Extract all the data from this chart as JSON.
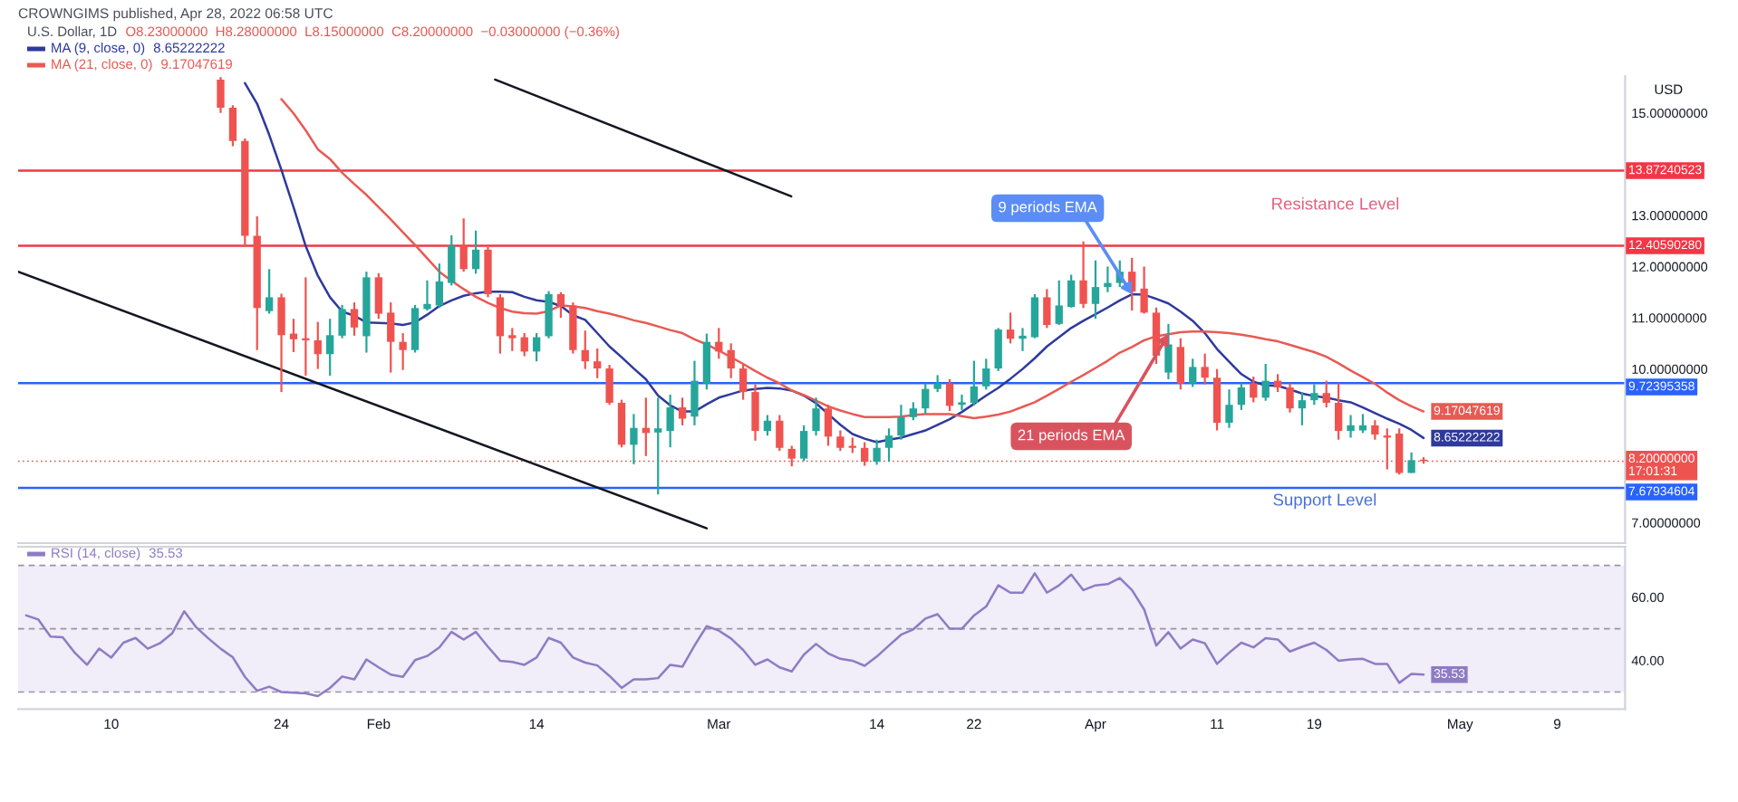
{
  "chart_data": [
    {
      "type": "candlestick",
      "title": "CROWNGIMS published, Apr 28, 2022 06:58 UTC",
      "subtitle": "U.S. Dollar, 1D",
      "ylabel": "USD",
      "x": [
        "2022-01-19",
        "2022-01-20",
        "2022-01-21",
        "2022-01-22",
        "2022-01-23",
        "2022-01-24",
        "2022-01-25",
        "2022-01-26",
        "2022-01-27",
        "2022-01-28",
        "2022-01-29",
        "2022-01-30",
        "2022-01-31",
        "2022-02-01",
        "2022-02-02",
        "2022-02-03",
        "2022-02-04",
        "2022-02-05",
        "2022-02-06",
        "2022-02-07",
        "2022-02-08",
        "2022-02-09",
        "2022-02-10",
        "2022-02-11",
        "2022-02-12",
        "2022-02-13",
        "2022-02-14",
        "2022-02-15",
        "2022-02-16",
        "2022-02-17",
        "2022-02-18",
        "2022-02-19",
        "2022-02-20",
        "2022-02-21",
        "2022-02-22",
        "2022-02-23",
        "2022-02-24",
        "2022-02-25",
        "2022-02-26",
        "2022-02-27",
        "2022-02-28",
        "2022-03-01",
        "2022-03-02",
        "2022-03-03",
        "2022-03-04",
        "2022-03-05",
        "2022-03-06",
        "2022-03-07",
        "2022-03-08",
        "2022-03-09",
        "2022-03-10",
        "2022-03-11",
        "2022-03-12",
        "2022-03-13",
        "2022-03-14",
        "2022-03-15",
        "2022-03-16",
        "2022-03-17",
        "2022-03-18",
        "2022-03-19",
        "2022-03-20",
        "2022-03-21",
        "2022-03-22",
        "2022-03-23",
        "2022-03-24",
        "2022-03-25",
        "2022-03-26",
        "2022-03-27",
        "2022-03-28",
        "2022-03-29",
        "2022-03-30",
        "2022-03-31",
        "2022-04-01",
        "2022-04-02",
        "2022-04-03",
        "2022-04-04",
        "2022-04-05",
        "2022-04-06",
        "2022-04-07",
        "2022-04-08",
        "2022-04-09",
        "2022-04-10",
        "2022-04-11",
        "2022-04-12",
        "2022-04-13",
        "2022-04-14",
        "2022-04-15",
        "2022-04-16",
        "2022-04-17",
        "2022-04-18",
        "2022-04-19",
        "2022-04-20",
        "2022-04-21",
        "2022-04-22",
        "2022-04-23",
        "2022-04-24",
        "2022-04-25",
        "2022-04-26",
        "2022-04-27",
        "2022-04-28"
      ],
      "ohlc": [
        [
          15.65,
          15.7,
          15.0,
          15.1
        ],
        [
          15.1,
          15.15,
          14.35,
          14.45
        ],
        [
          14.45,
          14.5,
          12.39,
          12.6
        ],
        [
          12.6,
          12.98,
          10.37,
          11.19
        ],
        [
          11.13,
          11.95,
          11.08,
          11.4
        ],
        [
          11.4,
          11.47,
          9.55,
          10.66
        ],
        [
          10.69,
          10.98,
          10.33,
          10.58
        ],
        [
          10.6,
          11.79,
          9.87,
          10.56
        ],
        [
          10.56,
          10.92,
          10.0,
          10.29
        ],
        [
          10.29,
          10.98,
          9.87,
          10.66
        ],
        [
          10.65,
          11.25,
          10.6,
          11.17
        ],
        [
          11.17,
          11.3,
          10.65,
          10.81
        ],
        [
          10.64,
          11.9,
          10.32,
          11.79
        ],
        [
          11.79,
          11.87,
          10.98,
          11.08
        ],
        [
          11.1,
          11.3,
          9.93,
          10.53
        ],
        [
          10.53,
          10.7,
          9.98,
          10.37
        ],
        [
          10.37,
          11.25,
          10.32,
          11.19
        ],
        [
          11.17,
          11.73,
          11.14,
          11.27
        ],
        [
          11.24,
          12.06,
          11.19,
          11.71
        ],
        [
          11.68,
          12.61,
          11.63,
          12.41
        ],
        [
          12.41,
          12.94,
          11.9,
          11.95
        ],
        [
          11.95,
          12.7,
          11.86,
          12.33
        ],
        [
          12.33,
          12.38,
          11.4,
          11.46
        ],
        [
          11.4,
          11.46,
          10.3,
          10.64
        ],
        [
          10.66,
          10.8,
          10.35,
          10.6
        ],
        [
          10.62,
          10.7,
          10.25,
          10.34
        ],
        [
          10.34,
          10.7,
          10.15,
          10.62
        ],
        [
          10.64,
          11.52,
          10.6,
          11.46
        ],
        [
          11.46,
          11.5,
          11.0,
          11.24
        ],
        [
          11.24,
          11.3,
          10.3,
          10.37
        ],
        [
          10.37,
          10.75,
          10.0,
          10.15
        ],
        [
          10.15,
          10.4,
          9.82,
          10.01
        ],
        [
          10.01,
          10.08,
          9.3,
          9.34
        ],
        [
          9.34,
          9.4,
          8.47,
          8.52
        ],
        [
          8.52,
          9.12,
          8.14,
          8.85
        ],
        [
          8.85,
          9.44,
          8.3,
          8.75
        ],
        [
          8.76,
          9.44,
          7.55,
          8.84
        ],
        [
          8.79,
          9.5,
          8.47,
          9.25
        ],
        [
          9.25,
          9.44,
          8.9,
          9.03
        ],
        [
          9.07,
          10.16,
          8.9,
          9.77
        ],
        [
          9.72,
          10.69,
          9.6,
          10.53
        ],
        [
          10.53,
          10.8,
          10.2,
          10.34
        ],
        [
          10.37,
          10.5,
          9.82,
          10.01
        ],
        [
          10.01,
          10.1,
          9.4,
          9.55
        ],
        [
          9.55,
          9.7,
          8.6,
          8.79
        ],
        [
          8.79,
          9.1,
          8.7,
          8.99
        ],
        [
          8.99,
          9.1,
          8.4,
          8.46
        ],
        [
          8.44,
          8.5,
          8.1,
          8.25
        ],
        [
          8.25,
          8.9,
          8.2,
          8.79
        ],
        [
          8.79,
          9.44,
          8.7,
          9.23
        ],
        [
          9.23,
          9.3,
          8.5,
          8.68
        ],
        [
          8.68,
          8.8,
          8.4,
          8.46
        ],
        [
          8.5,
          8.66,
          8.36,
          8.46
        ],
        [
          8.46,
          8.57,
          8.11,
          8.19
        ],
        [
          8.19,
          8.62,
          8.13,
          8.46
        ],
        [
          8.46,
          8.84,
          8.19,
          8.7
        ],
        [
          8.7,
          9.3,
          8.62,
          9.06
        ],
        [
          9.06,
          9.35,
          9.0,
          9.23
        ],
        [
          9.23,
          9.72,
          9.12,
          9.61
        ],
        [
          9.61,
          9.88,
          9.55,
          9.72
        ],
        [
          9.72,
          9.8,
          9.18,
          9.28
        ],
        [
          9.3,
          9.5,
          9.2,
          9.35
        ],
        [
          9.34,
          10.16,
          9.29,
          9.66
        ],
        [
          9.66,
          10.2,
          9.6,
          10.01
        ],
        [
          10.01,
          10.8,
          9.96,
          10.77
        ],
        [
          10.77,
          11.1,
          10.5,
          10.59
        ],
        [
          10.59,
          10.8,
          10.35,
          10.65
        ],
        [
          10.62,
          11.46,
          10.6,
          11.4
        ],
        [
          11.4,
          11.56,
          10.8,
          10.86
        ],
        [
          10.88,
          11.73,
          10.86,
          11.24
        ],
        [
          11.21,
          11.84,
          11.2,
          11.73
        ],
        [
          11.73,
          12.49,
          11.19,
          11.27
        ],
        [
          11.27,
          12.12,
          10.98,
          11.6
        ],
        [
          11.6,
          12.0,
          11.5,
          11.68
        ],
        [
          11.68,
          12.12,
          11.6,
          11.9
        ],
        [
          11.9,
          12.17,
          11.14,
          11.51
        ],
        [
          11.57,
          12.0,
          11.08,
          11.1
        ],
        [
          11.1,
          11.2,
          10.1,
          10.26
        ],
        [
          9.93,
          10.88,
          9.8,
          10.48
        ],
        [
          10.43,
          10.6,
          9.6,
          9.72
        ],
        [
          9.72,
          10.2,
          9.65,
          10.04
        ],
        [
          10.04,
          10.3,
          9.7,
          9.83
        ],
        [
          9.83,
          10.0,
          8.8,
          8.95
        ],
        [
          8.95,
          9.6,
          8.85,
          9.3
        ],
        [
          9.3,
          9.72,
          9.2,
          9.64
        ],
        [
          9.72,
          9.85,
          9.35,
          9.44
        ],
        [
          9.44,
          10.1,
          9.38,
          9.77
        ],
        [
          9.77,
          9.9,
          9.55,
          9.64
        ],
        [
          9.64,
          9.72,
          9.15,
          9.23
        ],
        [
          9.23,
          9.55,
          8.9,
          9.39
        ],
        [
          9.39,
          9.7,
          9.3,
          9.53
        ],
        [
          9.53,
          9.77,
          9.25,
          9.34
        ],
        [
          9.34,
          9.72,
          8.62,
          8.79
        ],
        [
          8.79,
          9.1,
          8.66,
          8.9
        ],
        [
          8.8,
          9.12,
          8.75,
          8.9
        ],
        [
          8.9,
          9.0,
          8.62,
          8.72
        ],
        [
          8.7,
          8.84,
          8.04,
          8.66
        ],
        [
          8.74,
          8.84,
          7.94,
          7.97
        ],
        [
          7.97,
          8.37,
          7.97,
          8.22
        ],
        [
          8.23,
          8.28,
          8.15,
          8.2
        ]
      ],
      "colors": [
        "#ef5350",
        "#ef5350",
        "#ef5350",
        "#ef5350",
        "#26a69a",
        "#ef5350",
        "#ef5350",
        "#ef5350",
        "#ef5350",
        "#26a69a",
        "#26a69a",
        "#ef5350",
        "#26a69a",
        "#ef5350",
        "#ef5350",
        "#ef5350",
        "#26a69a",
        "#26a69a",
        "#26a69a",
        "#26a69a",
        "#ef5350",
        "#26a69a",
        "#ef5350",
        "#ef5350",
        "#ef5350",
        "#ef5350",
        "#26a69a",
        "#26a69a",
        "#ef5350",
        "#ef5350",
        "#ef5350",
        "#ef5350",
        "#ef5350",
        "#ef5350",
        "#26a69a",
        "#ef5350",
        "#26a69a",
        "#26a69a",
        "#ef5350",
        "#26a69a",
        "#26a69a",
        "#ef5350",
        "#ef5350",
        "#ef5350",
        "#ef5350",
        "#26a69a",
        "#ef5350",
        "#ef5350",
        "#26a69a",
        "#26a69a",
        "#ef5350",
        "#ef5350",
        "#ef5350",
        "#ef5350",
        "#26a69a",
        "#26a69a",
        "#26a69a",
        "#26a69a",
        "#26a69a",
        "#26a69a",
        "#ef5350",
        "#26a69a",
        "#26a69a",
        "#26a69a",
        "#26a69a",
        "#ef5350",
        "#26a69a",
        "#26a69a",
        "#ef5350",
        "#26a69a",
        "#26a69a",
        "#ef5350",
        "#26a69a",
        "#26a69a",
        "#26a69a",
        "#ef5350",
        "#ef5350",
        "#ef5350",
        "#26a69a",
        "#ef5350",
        "#26a69a",
        "#ef5350",
        "#ef5350",
        "#26a69a",
        "#26a69a",
        "#ef5350",
        "#26a69a",
        "#ef5350",
        "#ef5350",
        "#26a69a",
        "#26a69a",
        "#ef5350",
        "#ef5350",
        "#26a69a",
        "#26a69a",
        "#ef5350",
        "#ef5350",
        "#ef5350",
        "#26a69a",
        "#ef5350"
      ],
      "series": [
        {
          "name": "MA (9, close, 0)",
          "type": "line",
          "color": "#2e3a9c",
          "values": [
            null,
            null,
            15.58,
            15.18,
            14.57,
            13.89,
            13.16,
            12.4,
            11.82,
            11.4,
            11.12,
            11.04,
            10.91,
            10.9,
            10.89,
            10.86,
            10.91,
            11.06,
            11.23,
            11.34,
            11.43,
            11.48,
            11.51,
            11.51,
            11.5,
            11.41,
            11.34,
            11.31,
            11.23,
            11.05,
            10.96,
            10.7,
            10.44,
            10.23,
            10.01,
            9.8,
            9.48,
            9.29,
            9.17,
            9.17,
            9.31,
            9.44,
            9.51,
            9.58,
            9.61,
            9.63,
            9.62,
            9.58,
            9.48,
            9.33,
            9.12,
            8.91,
            8.73,
            8.64,
            8.57,
            8.62,
            8.66,
            8.73,
            8.8,
            8.91,
            9.02,
            9.16,
            9.32,
            9.48,
            9.63,
            9.81,
            10.0,
            10.21,
            10.44,
            10.62,
            10.8,
            10.94,
            11.07,
            11.2,
            11.34,
            11.46,
            11.45,
            11.37,
            11.28,
            11.12,
            10.94,
            10.7,
            10.39,
            10.14,
            9.9,
            9.75,
            9.68,
            9.67,
            9.6,
            9.52,
            9.47,
            9.44,
            9.39,
            9.35,
            9.25,
            9.14,
            9.03,
            8.93,
            8.81,
            8.65222222
          ],
          "value_labels": [
            null,
            null,
            null,
            null,
            null,
            null,
            null,
            null,
            null,
            null,
            null,
            null,
            null,
            null,
            null,
            null,
            null,
            null,
            null,
            null,
            null,
            null,
            null,
            null,
            null,
            null,
            null,
            null,
            null,
            null,
            null,
            null,
            null,
            null,
            null,
            null,
            null,
            null,
            null,
            null,
            null,
            null,
            null,
            null,
            null,
            null,
            null,
            null,
            null,
            null,
            null,
            null,
            null,
            null,
            null,
            null,
            null,
            null,
            null,
            null,
            null,
            null,
            null,
            null,
            null,
            null,
            null,
            null,
            null,
            null,
            null,
            null,
            null,
            null,
            null,
            null,
            null,
            null,
            null,
            null,
            null,
            null,
            null,
            null,
            null,
            null,
            null,
            null,
            null,
            null,
            null,
            null,
            null,
            null,
            null,
            null,
            null,
            null,
            null,
            "8.65222222"
          ]
        },
        {
          "name": "MA (21, close, 0)",
          "type": "line",
          "color": "#e85a54",
          "values": [
            null,
            null,
            null,
            null,
            null,
            15.27,
            14.99,
            14.66,
            14.29,
            14.1,
            13.83,
            13.61,
            13.4,
            13.16,
            12.92,
            12.67,
            12.42,
            12.16,
            11.9,
            11.72,
            11.56,
            11.41,
            11.29,
            11.19,
            11.12,
            11.09,
            11.08,
            11.13,
            11.24,
            11.22,
            11.19,
            11.13,
            11.08,
            11.02,
            10.95,
            10.9,
            10.83,
            10.76,
            10.7,
            10.58,
            10.48,
            10.36,
            10.23,
            10.1,
            9.96,
            9.83,
            9.72,
            9.58,
            9.49,
            9.38,
            9.27,
            9.19,
            9.12,
            9.06,
            9.06,
            9.06,
            9.07,
            9.1,
            9.12,
            9.12,
            9.12,
            9.08,
            9.04,
            9.07,
            9.11,
            9.17,
            9.26,
            9.35,
            9.48,
            9.61,
            9.75,
            9.88,
            10.02,
            10.16,
            10.32,
            10.43,
            10.56,
            10.64,
            10.68,
            10.72,
            10.73,
            10.73,
            10.72,
            10.7,
            10.67,
            10.63,
            10.58,
            10.54,
            10.47,
            10.4,
            10.33,
            10.24,
            10.11,
            9.97,
            9.84,
            9.71,
            9.54,
            9.39,
            9.27,
            9.17047619
          ],
          "value_labels": [
            null,
            null,
            null,
            null,
            null,
            null,
            null,
            null,
            null,
            null,
            null,
            null,
            null,
            null,
            null,
            null,
            null,
            null,
            null,
            null,
            null,
            null,
            null,
            null,
            null,
            null,
            null,
            null,
            null,
            null,
            null,
            null,
            null,
            null,
            null,
            null,
            null,
            null,
            null,
            null,
            null,
            null,
            null,
            null,
            null,
            null,
            null,
            null,
            null,
            null,
            null,
            null,
            null,
            null,
            null,
            null,
            null,
            null,
            null,
            null,
            null,
            null,
            null,
            null,
            null,
            null,
            null,
            null,
            null,
            null,
            null,
            null,
            null,
            null,
            null,
            null,
            null,
            null,
            null,
            null,
            null,
            null,
            null,
            null,
            null,
            null,
            null,
            null,
            null,
            null,
            null,
            null,
            null,
            null,
            null,
            null,
            null,
            null,
            null,
            "9.17047619"
          ]
        },
        {
          "type": "line",
          "color": "#131722",
          "x": [
            "2022-02-10T14:00",
            "2022-03-06T23:00"
          ],
          "values": [
            15.65,
            13.37
          ]
        },
        {
          "type": "line",
          "color": "#131722",
          "x": [
            "2022-01-02T08:00",
            "2022-02-28"
          ],
          "values": [
            11.9,
            6.89
          ]
        }
      ],
      "xlim": [
        "2022-01-02T08:00",
        "2022-05-14T14:00"
      ],
      "ylim": [
        6.6,
        15.72
      ],
      "yticks": [
        {
          "value": 15,
          "label": "15.00000000"
        },
        {
          "value": 13,
          "label": "13.00000000"
        },
        {
          "value": 12,
          "label": "12.00000000"
        },
        {
          "value": 11,
          "label": "11.00000000"
        },
        {
          "value": 10,
          "label": "10.00000000"
        },
        {
          "value": 7,
          "label": "7.00000000"
        }
      ],
      "tick_labels": "y",
      "ref_lines": [
        {
          "axis": "y",
          "value": 13.87240523,
          "label": "13.87240523",
          "color": "#f23645"
        },
        {
          "axis": "y",
          "value": 12.4059028,
          "label": "12.40590280",
          "color": "#f23645"
        },
        {
          "axis": "y",
          "value": 9.72395358,
          "label": "9.72395358",
          "color": "#2962ff"
        },
        {
          "axis": "y",
          "value": 7.67934604,
          "label": "7.67934604",
          "color": "#2962ff"
        },
        {
          "axis": "y",
          "value": 8.2,
          "label": "8.20000000\n17:01:31",
          "color": "#ef5350",
          "line_style": "dotted"
        }
      ],
      "annotations": [
        "O8.23000000  H8.28000000  L8.15000000  C8.20000000  −0.03000000 (−0.36%)",
        "Resistance Level",
        "Support Level",
        {
          "text": "9 periods EMA",
          "x": "2022-04-04",
          "y": 11.46
        },
        {
          "text": "21 periods EMA",
          "x": "2022-04-07",
          "y": 10.68
        }
      ],
      "legend": "top left"
    },
    {
      "type": "line",
      "x": [
        "2022-01-03",
        "2022-01-04",
        "2022-01-05",
        "2022-01-06",
        "2022-01-07",
        "2022-01-08",
        "2022-01-09",
        "2022-01-10",
        "2022-01-11",
        "2022-01-12",
        "2022-01-13",
        "2022-01-14",
        "2022-01-15",
        "2022-01-16",
        "2022-01-17",
        "2022-01-18",
        "2022-01-19",
        "2022-01-20",
        "2022-01-21",
        "2022-01-22",
        "2022-01-23",
        "2022-01-24",
        "2022-01-25",
        "2022-01-26",
        "2022-01-27",
        "2022-01-28",
        "2022-01-29",
        "2022-01-30",
        "2022-01-31",
        "2022-02-01",
        "2022-02-02",
        "2022-02-03",
        "2022-02-04",
        "2022-02-05",
        "2022-02-06",
        "2022-02-07",
        "2022-02-08",
        "2022-02-09",
        "2022-02-10",
        "2022-02-11",
        "2022-02-12",
        "2022-02-13",
        "2022-02-14",
        "2022-02-15",
        "2022-02-16",
        "2022-02-17",
        "2022-02-18",
        "2022-02-19",
        "2022-02-20",
        "2022-02-21",
        "2022-02-22",
        "2022-02-23",
        "2022-02-24",
        "2022-02-25",
        "2022-02-26",
        "2022-02-27",
        "2022-02-28",
        "2022-03-01",
        "2022-03-02",
        "2022-03-03",
        "2022-03-04",
        "2022-03-05",
        "2022-03-06",
        "2022-03-07",
        "2022-03-08",
        "2022-03-09",
        "2022-03-10",
        "2022-03-11",
        "2022-03-12",
        "2022-03-13",
        "2022-03-14",
        "2022-03-15",
        "2022-03-16",
        "2022-03-17",
        "2022-03-18",
        "2022-03-19",
        "2022-03-20",
        "2022-03-21",
        "2022-03-22",
        "2022-03-23",
        "2022-03-24",
        "2022-03-25",
        "2022-03-26",
        "2022-03-27",
        "2022-03-28",
        "2022-03-29",
        "2022-03-30",
        "2022-03-31",
        "2022-04-01",
        "2022-04-02",
        "2022-04-03",
        "2022-04-04",
        "2022-04-05",
        "2022-04-06",
        "2022-04-07",
        "2022-04-08",
        "2022-04-09",
        "2022-04-10",
        "2022-04-11",
        "2022-04-12",
        "2022-04-13",
        "2022-04-14",
        "2022-04-15",
        "2022-04-16",
        "2022-04-17",
        "2022-04-18",
        "2022-04-19",
        "2022-04-20",
        "2022-04-21",
        "2022-04-22",
        "2022-04-23",
        "2022-04-24",
        "2022-04-25",
        "2022-04-26",
        "2022-04-27",
        "2022-04-28"
      ],
      "series": [
        {
          "name": "RSI (14, close)",
          "color": "#8e7cc3",
          "values": [
            54.2,
            52.9,
            47.5,
            47.3,
            42.4,
            38.6,
            43.7,
            40.9,
            45.6,
            47.1,
            43.7,
            45.4,
            48.5,
            55.5,
            50.4,
            46.9,
            43.7,
            41.0,
            34.8,
            30.4,
            31.7,
            30.0,
            29.8,
            29.6,
            28.7,
            31.3,
            34.9,
            34.0,
            40.3,
            37.8,
            35.5,
            34.8,
            40.1,
            41.4,
            44.1,
            49.0,
            46.6,
            49.0,
            44.3,
            39.9,
            39.5,
            38.6,
            40.9,
            47.1,
            45.6,
            40.9,
            39.3,
            38.4,
            35.1,
            31.3,
            34.0,
            34.0,
            34.4,
            38.6,
            38.0,
            44.7,
            50.8,
            49.4,
            46.9,
            43.3,
            38.6,
            40.3,
            37.8,
            36.5,
            41.8,
            45.2,
            42.2,
            40.5,
            39.9,
            38.3,
            41.2,
            44.7,
            48.1,
            49.8,
            53.2,
            54.6,
            50.0,
            50.0,
            54.2,
            57.0,
            63.7,
            61.4,
            61.4,
            67.5,
            61.4,
            63.7,
            67.1,
            62.2,
            63.7,
            64.1,
            66.0,
            62.2,
            56.1,
            44.7,
            48.9,
            43.7,
            46.6,
            45.4,
            38.9,
            42.4,
            45.6,
            44.1,
            47.0,
            46.6,
            42.8,
            44.3,
            45.6,
            43.3,
            39.9,
            40.3,
            40.5,
            38.9,
            38.9,
            32.9,
            35.7,
            35.53
          ],
          "value_labels": [
            null,
            null,
            null,
            null,
            null,
            null,
            null,
            null,
            null,
            null,
            null,
            null,
            null,
            null,
            null,
            null,
            null,
            null,
            null,
            null,
            null,
            null,
            null,
            null,
            null,
            null,
            null,
            null,
            null,
            null,
            null,
            null,
            null,
            null,
            null,
            null,
            null,
            null,
            null,
            null,
            null,
            null,
            null,
            null,
            null,
            null,
            null,
            null,
            null,
            null,
            null,
            null,
            null,
            null,
            null,
            null,
            null,
            null,
            null,
            null,
            null,
            null,
            null,
            null,
            null,
            null,
            null,
            null,
            null,
            null,
            null,
            null,
            null,
            null,
            null,
            null,
            null,
            null,
            null,
            null,
            null,
            null,
            null,
            null,
            null,
            null,
            null,
            null,
            null,
            null,
            null,
            null,
            null,
            null,
            null,
            null,
            null,
            null,
            null,
            null,
            null,
            null,
            null,
            null,
            null,
            null,
            null,
            null,
            null,
            null,
            null,
            null,
            null,
            null,
            null,
            "35.53"
          ]
        }
      ],
      "xlim": [
        "2022-01-02T08:00",
        "2022-05-14T14:00"
      ],
      "xticks": [
        {
          "value": "2022-01-10",
          "label": "10"
        },
        {
          "value": "2022-01-24",
          "label": "24"
        },
        {
          "value": "2022-02-01",
          "label": "Feb"
        },
        {
          "value": "2022-02-14",
          "label": "14"
        },
        {
          "value": "2022-03-01",
          "label": "Mar"
        },
        {
          "value": "2022-03-14",
          "label": "14"
        },
        {
          "value": "2022-03-22",
          "label": "22"
        },
        {
          "value": "2022-04-01",
          "label": "Apr"
        },
        {
          "value": "2022-04-11",
          "label": "11"
        },
        {
          "value": "2022-04-19",
          "label": "19"
        },
        {
          "value": "2022-05-01",
          "label": "May"
        },
        {
          "value": "2022-05-09",
          "label": "9"
        }
      ],
      "ylim": [
        24.6,
        75.9
      ],
      "yticks": [
        {
          "value": 60,
          "label": "60.00"
        },
        {
          "value": 40,
          "label": "40.00"
        }
      ],
      "ref_lines": [
        {
          "axis": "y",
          "value": 70,
          "color": "#9598a1",
          "line_style": "dashed"
        },
        {
          "axis": "y",
          "value": 50,
          "color": "#9598a1",
          "line_style": "dashed"
        },
        {
          "axis": "y",
          "value": 30,
          "color": "#9598a1",
          "line_style": "dashed"
        }
      ],
      "bands": [
        {
          "axis": "y",
          "from": 30,
          "to": 70,
          "color": "#f1edf9"
        }
      ],
      "legend": "top left"
    }
  ]
}
